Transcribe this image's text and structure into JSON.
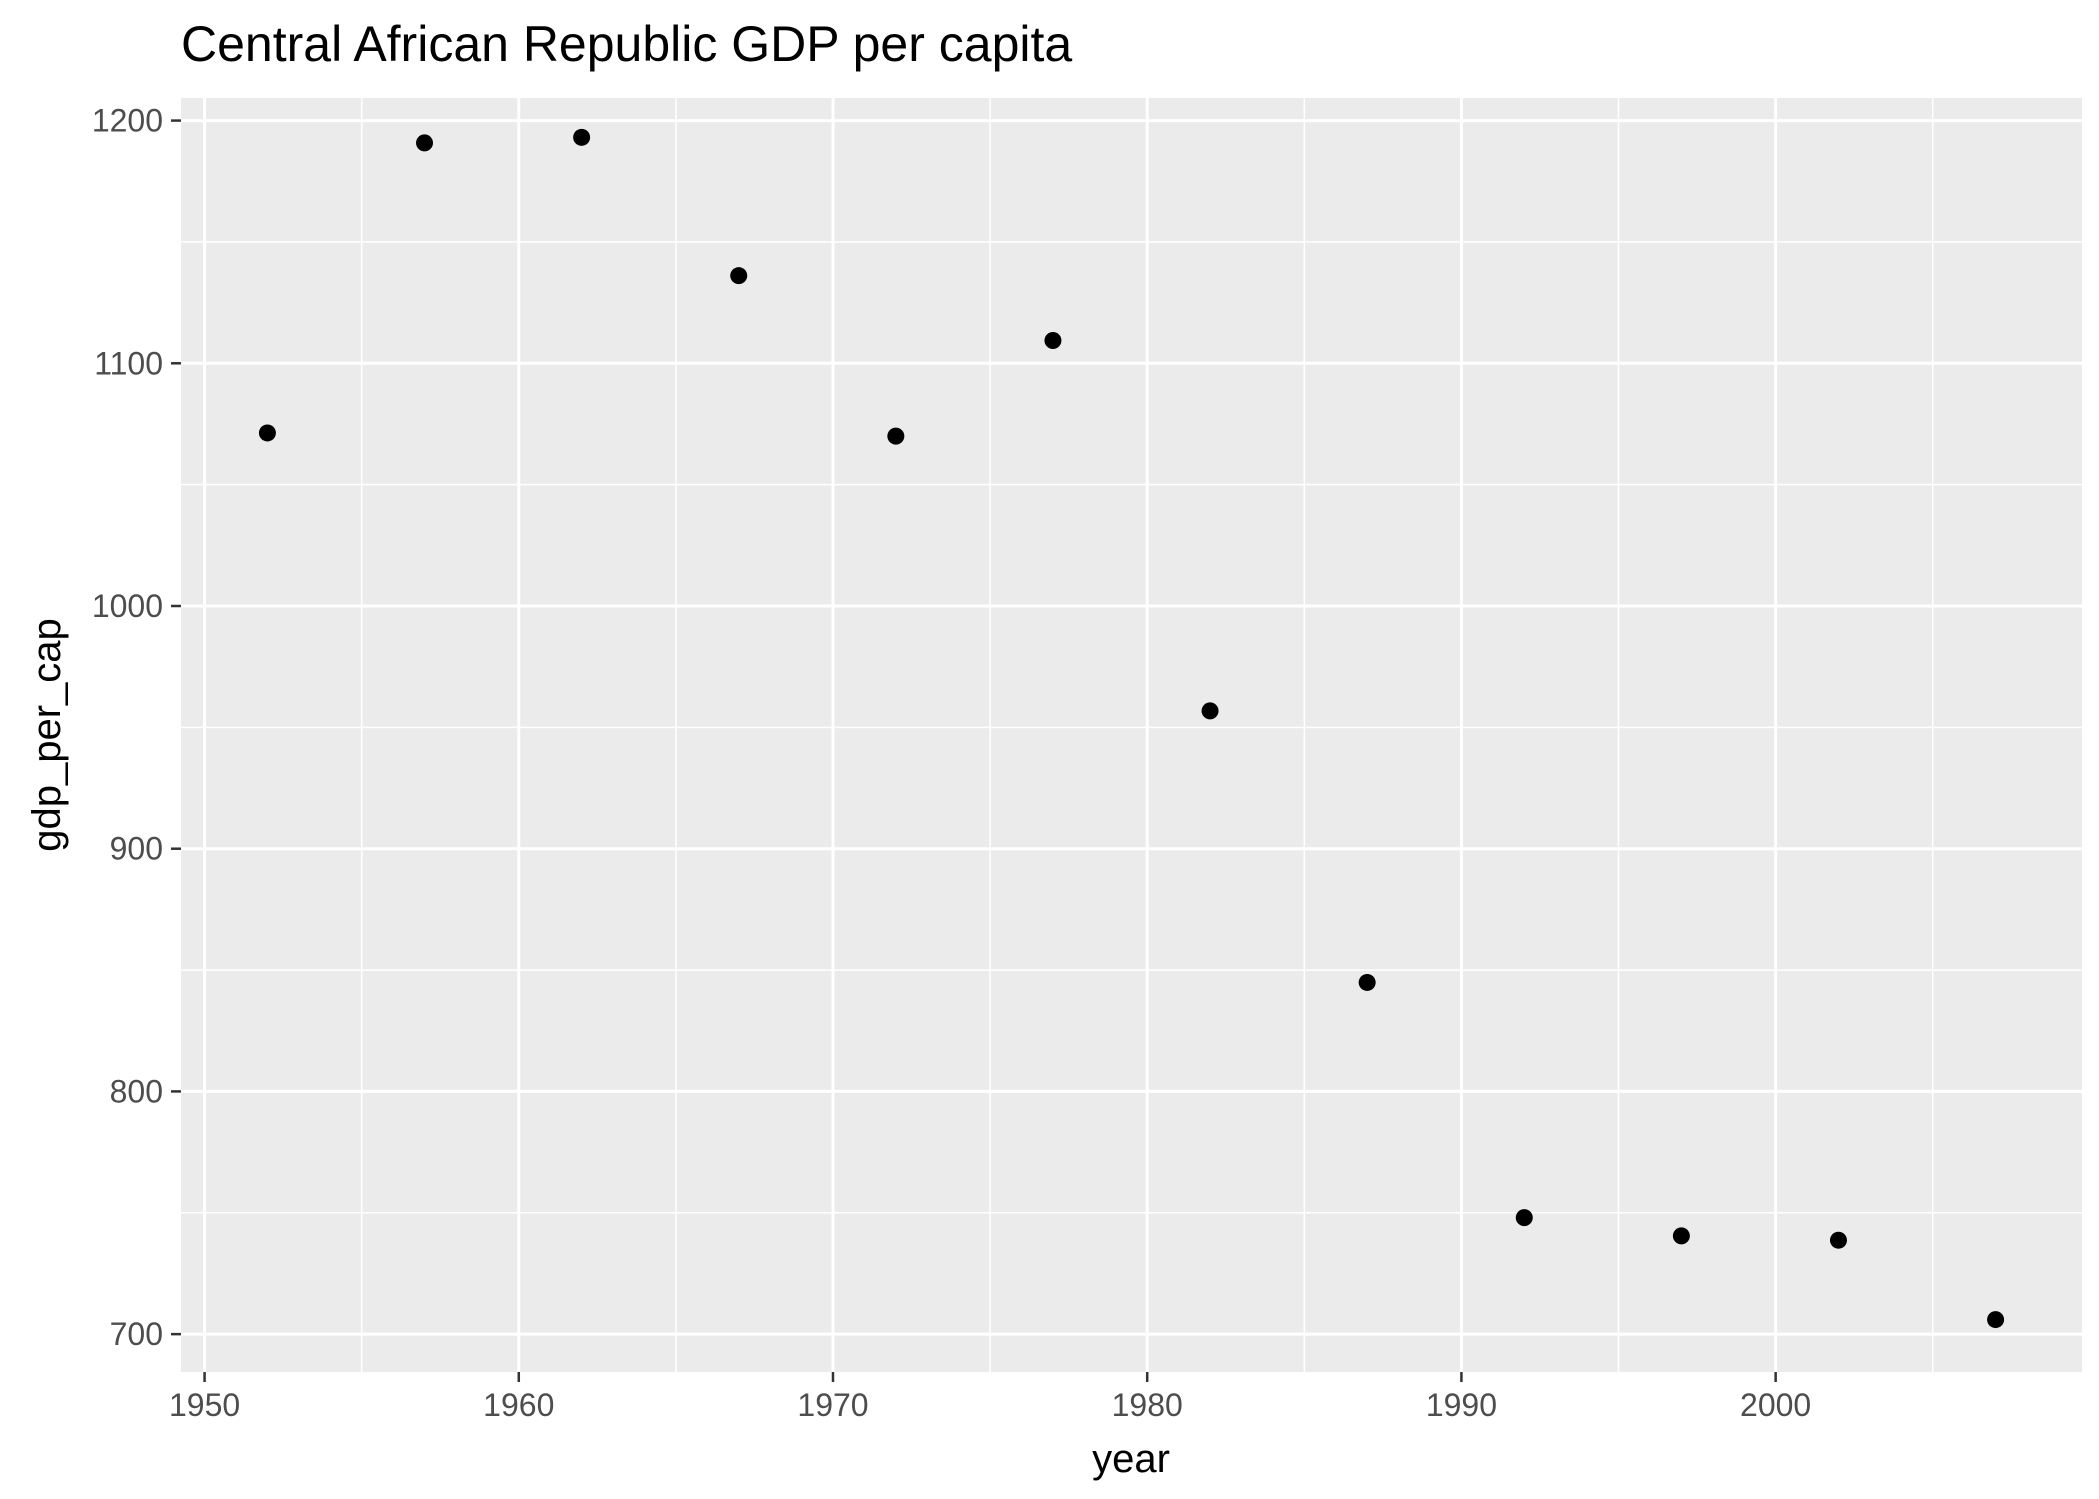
{
  "chart_data": {
    "type": "scatter",
    "title": "Central African Republic GDP per capita",
    "xlabel": "year",
    "ylabel": "gdp_per_cap",
    "xlim": [
      1949.25,
      2009.75
    ],
    "ylim": [
      684.4,
      1209.3
    ],
    "x_ticks": [
      1950,
      1960,
      1970,
      1980,
      1990,
      2000
    ],
    "x_tick_labels": [
      "1950",
      "1960",
      "1970",
      "1980",
      "1990",
      "2000"
    ],
    "x_minor_ticks": [
      1955,
      1965,
      1975,
      1985,
      1995,
      2005
    ],
    "y_ticks": [
      700,
      800,
      900,
      1000,
      1100,
      1200
    ],
    "y_tick_labels": [
      "700",
      "800",
      "900",
      "1000",
      "1100",
      "1200"
    ],
    "y_minor_ticks": [
      750,
      850,
      950,
      1050,
      1150
    ],
    "grid": true,
    "x": [
      1952,
      1957,
      1962,
      1967,
      1972,
      1977,
      1982,
      1987,
      1992,
      1997,
      2002,
      2007
    ],
    "y": [
      1071.3,
      1190.8,
      1193.1,
      1136.1,
      1070.0,
      1109.4,
      956.8,
      844.9,
      748.0,
      740.5,
      738.7,
      706.0
    ],
    "colors": {
      "panel": "#ebebeb",
      "grid": "#ffffff",
      "point": "#000000",
      "tick_text": "#4d4d4d",
      "tick_mark": "#333333"
    }
  }
}
